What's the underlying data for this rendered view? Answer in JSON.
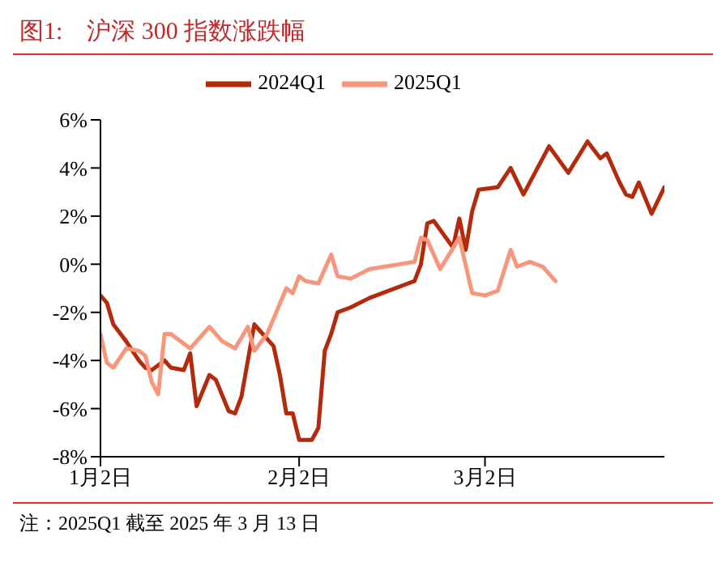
{
  "chart_data": {
    "type": "line",
    "title": "图1:　沪深 300 指数涨跌幅",
    "annotations": [
      "注：2025Q1 截至 2025 年 3 月 13 日"
    ],
    "legend": "top",
    "grid": false,
    "marker": "none",
    "line_style": "solid",
    "xlim": [
      "--01-02",
      "--03-30"
    ],
    "xticks": [
      {
        "value": "--01-02",
        "label": "1月2日"
      },
      {
        "value": "--02-02",
        "label": "2月2日"
      },
      {
        "value": "--03-02",
        "label": "3月2日"
      }
    ],
    "ylim": [
      -8,
      6
    ],
    "yticks": [
      {
        "value": -8,
        "label": "-8%"
      },
      {
        "value": -6,
        "label": "-6%"
      },
      {
        "value": -4,
        "label": "-4%"
      },
      {
        "value": -2,
        "label": "-2%"
      },
      {
        "value": 0,
        "label": "0%"
      },
      {
        "value": 2,
        "label": "2%"
      },
      {
        "value": 4,
        "label": "4%"
      },
      {
        "value": 6,
        "label": "6%"
      }
    ],
    "series": [
      {
        "name": "2024Q1",
        "color": "#b32a0c",
        "x": [
          "--01-02",
          "--01-03",
          "--01-04",
          "--01-06",
          "--01-08",
          "--01-09",
          "--01-10",
          "--01-12",
          "--01-13",
          "--01-15",
          "--01-16",
          "--01-17",
          "--01-19",
          "--01-20",
          "--01-22",
          "--01-23",
          "--01-24",
          "--01-26",
          "--01-27",
          "--01-29",
          "--01-30",
          "--01-31",
          "--02-01",
          "--02-02",
          "--02-04",
          "--02-05",
          "--02-06",
          "--02-07",
          "--02-08",
          "--02-10",
          "--02-13",
          "--02-20",
          "--02-21",
          "--02-22",
          "--02-23",
          "--02-26",
          "--02-27",
          "--02-28",
          "--02-29",
          "--03-01",
          "--03-04",
          "--03-06",
          "--03-08",
          "--03-12",
          "--03-15",
          "--03-18",
          "--03-20",
          "--03-21",
          "--03-23",
          "--03-24",
          "--03-25",
          "--03-26",
          "--03-28",
          "--03-30"
        ],
        "values": [
          -1.3,
          -1.6,
          -2.5,
          -3.2,
          -4.0,
          -4.3,
          -4.4,
          -4.0,
          -4.3,
          -4.4,
          -3.7,
          -5.9,
          -4.6,
          -4.8,
          -6.1,
          -6.2,
          -5.5,
          -2.5,
          -2.8,
          -3.4,
          -4.6,
          -6.2,
          -6.2,
          -7.3,
          -7.3,
          -6.8,
          -3.6,
          -2.9,
          -2.0,
          -1.8,
          -1.4,
          -0.7,
          0,
          1.7,
          1.8,
          0.7,
          1.9,
          0.6,
          2.2,
          3.1,
          3.2,
          4.0,
          2.9,
          4.9,
          3.8,
          5.1,
          4.4,
          4.6,
          3.4,
          2.9,
          2.8,
          3.4,
          2.1,
          3.2
        ]
      },
      {
        "name": "2025Q1",
        "color": "#f7967a",
        "x": [
          "--01-02",
          "--01-03",
          "--01-04",
          "--01-06",
          "--01-08",
          "--01-09",
          "--01-10",
          "--01-11",
          "--01-12",
          "--01-13",
          "--01-16",
          "--01-19",
          "--01-21",
          "--01-23",
          "--01-25",
          "--01-26",
          "--01-28",
          "--01-31",
          "--02-01",
          "--02-02",
          "--02-03",
          "--02-05",
          "--02-07",
          "--02-08",
          "--02-10",
          "--02-13",
          "--02-20",
          "--02-21",
          "--02-22",
          "--02-24",
          "--02-27",
          "--02-29",
          "--03-02",
          "--03-04",
          "--03-06",
          "--03-07",
          "--03-09",
          "--03-11",
          "--03-13"
        ],
        "values": [
          -2.9,
          -4.1,
          -4.3,
          -3.5,
          -3.6,
          -3.8,
          -4.9,
          -5.4,
          -2.9,
          -2.9,
          -3.5,
          -2.6,
          -3.2,
          -3.5,
          -2.6,
          -3.6,
          -2.9,
          -1.0,
          -1.2,
          -0.5,
          -0.7,
          -0.8,
          0.4,
          -0.5,
          -0.6,
          -0.2,
          0.1,
          1.1,
          1.0,
          -0.2,
          1.1,
          -1.2,
          -1.3,
          -1.1,
          0.6,
          -0.1,
          0.1,
          -0.1,
          -0.7
        ]
      }
    ]
  }
}
